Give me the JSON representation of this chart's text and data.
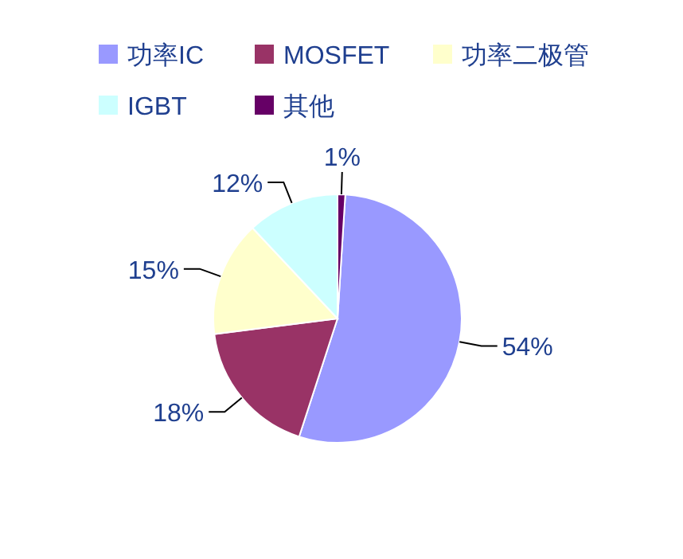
{
  "chart_data": {
    "type": "pie",
    "categories": [
      "功率IC",
      "MOSFET",
      "功率二极管",
      "IGBT",
      "其他"
    ],
    "values": [
      54,
      18,
      15,
      12,
      1
    ],
    "colors": [
      "#9999ff",
      "#993366",
      "#ffffcc",
      "#ccffff",
      "#660066"
    ],
    "value_labels": [
      "54%",
      "18%",
      "15%",
      "12%",
      "1%"
    ],
    "legend": "top"
  }
}
